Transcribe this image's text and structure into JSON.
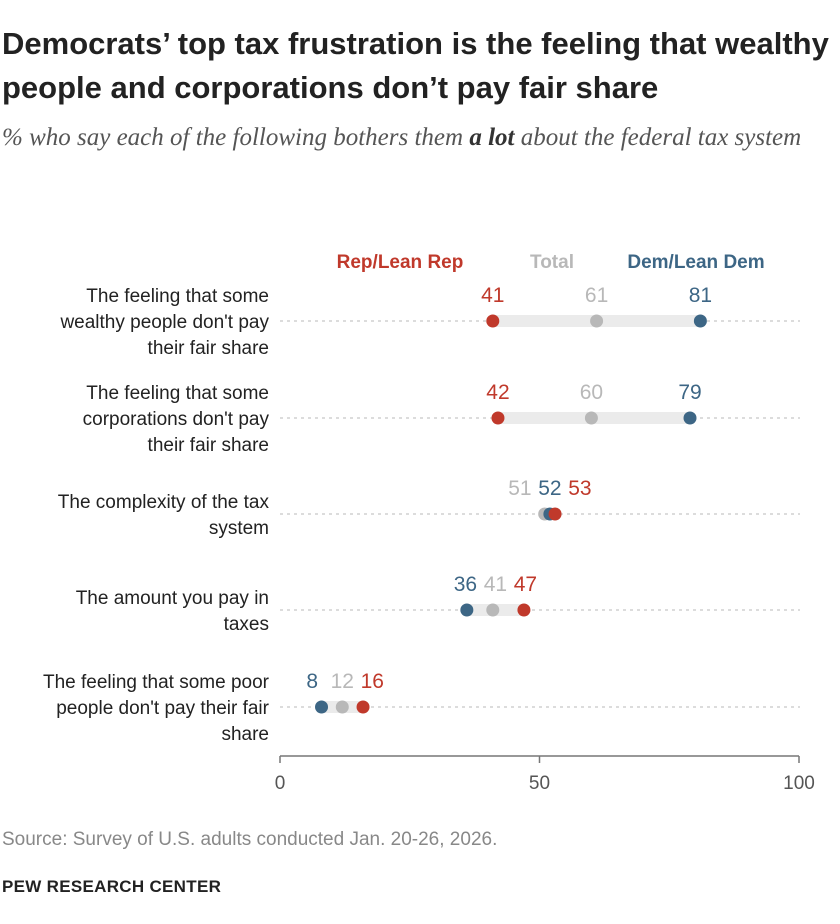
{
  "header": {
    "title": "Democrats’ top tax frustration is the feeling that wealthy people and corporations don’t pay fair share",
    "subtitle_pre": "% who say each of the following bothers them ",
    "subtitle_bold": "a lot",
    "subtitle_post": " about the federal tax system"
  },
  "footer": {
    "source": "Source: Survey of U.S. adults conducted Jan. 20-26, 2026.",
    "brand": "PEW RESEARCH CENTER"
  },
  "colors": {
    "rep": "#C0392B",
    "total": "#B8B8B8",
    "dem": "#3D6685",
    "range": "#EBEBEB",
    "guide": "#DCDCDC"
  },
  "chart_data": {
    "type": "dot",
    "categories": [
      "The feeling that some wealthy people don't pay their fair share",
      "The feeling that some corporations don't pay their fair share",
      "The complexity of the tax system",
      "The amount you pay in taxes",
      "The feeling that some poor people don't pay their fair share"
    ],
    "category_lines": [
      [
        "The feeling that some",
        "wealthy people don't pay",
        "their fair share"
      ],
      [
        "The feeling that some",
        "corporations don't pay",
        "their fair share"
      ],
      [
        "The complexity of the tax",
        "system"
      ],
      [
        "The amount you pay in",
        "taxes"
      ],
      [
        "The feeling that some poor",
        "people don't pay their fair",
        "share"
      ]
    ],
    "series": [
      {
        "key": "rep",
        "name": "Rep/Lean Rep",
        "values": [
          41,
          42,
          53,
          47,
          16
        ]
      },
      {
        "key": "total",
        "name": "Total",
        "values": [
          61,
          60,
          51,
          41,
          12
        ]
      },
      {
        "key": "dem",
        "name": "Dem/Lean Dem",
        "values": [
          81,
          79,
          52,
          36,
          8
        ]
      }
    ],
    "xlim": [
      0,
      100
    ],
    "xticks": [
      "0",
      "50",
      "100"
    ],
    "xtick_values": [
      0,
      50,
      100
    ]
  }
}
